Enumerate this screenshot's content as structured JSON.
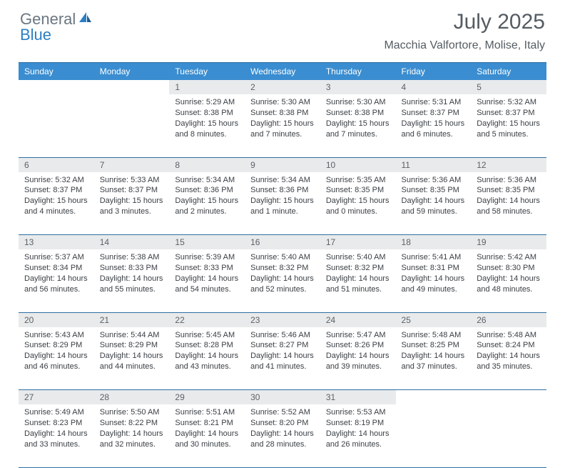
{
  "logo": {
    "general": "General",
    "blue": "Blue"
  },
  "title": "July 2025",
  "location": "Macchia Valfortore, Molise, Italy",
  "colors": {
    "header_bg": "#3a8dd0",
    "header_text": "#ffffff",
    "daynum_bg": "#e9eaeb",
    "daynum_text": "#5c6166",
    "body_text": "#3a3f44",
    "rule": "#2e6fa3",
    "logo_gray": "#6b7680",
    "logo_blue": "#2b7fc4",
    "title_gray": "#555c62"
  },
  "day_headers": [
    "Sunday",
    "Monday",
    "Tuesday",
    "Wednesday",
    "Thursday",
    "Friday",
    "Saturday"
  ],
  "weeks": [
    {
      "nums": [
        "",
        "",
        "1",
        "2",
        "3",
        "4",
        "5"
      ],
      "cells": [
        null,
        null,
        {
          "sunrise": "5:29 AM",
          "sunset": "8:38 PM",
          "daylight": "15 hours and 8 minutes."
        },
        {
          "sunrise": "5:30 AM",
          "sunset": "8:38 PM",
          "daylight": "15 hours and 7 minutes."
        },
        {
          "sunrise": "5:30 AM",
          "sunset": "8:38 PM",
          "daylight": "15 hours and 7 minutes."
        },
        {
          "sunrise": "5:31 AM",
          "sunset": "8:37 PM",
          "daylight": "15 hours and 6 minutes."
        },
        {
          "sunrise": "5:32 AM",
          "sunset": "8:37 PM",
          "daylight": "15 hours and 5 minutes."
        }
      ]
    },
    {
      "nums": [
        "6",
        "7",
        "8",
        "9",
        "10",
        "11",
        "12"
      ],
      "cells": [
        {
          "sunrise": "5:32 AM",
          "sunset": "8:37 PM",
          "daylight": "15 hours and 4 minutes."
        },
        {
          "sunrise": "5:33 AM",
          "sunset": "8:37 PM",
          "daylight": "15 hours and 3 minutes."
        },
        {
          "sunrise": "5:34 AM",
          "sunset": "8:36 PM",
          "daylight": "15 hours and 2 minutes."
        },
        {
          "sunrise": "5:34 AM",
          "sunset": "8:36 PM",
          "daylight": "15 hours and 1 minute."
        },
        {
          "sunrise": "5:35 AM",
          "sunset": "8:35 PM",
          "daylight": "15 hours and 0 minutes."
        },
        {
          "sunrise": "5:36 AM",
          "sunset": "8:35 PM",
          "daylight": "14 hours and 59 minutes."
        },
        {
          "sunrise": "5:36 AM",
          "sunset": "8:35 PM",
          "daylight": "14 hours and 58 minutes."
        }
      ]
    },
    {
      "nums": [
        "13",
        "14",
        "15",
        "16",
        "17",
        "18",
        "19"
      ],
      "cells": [
        {
          "sunrise": "5:37 AM",
          "sunset": "8:34 PM",
          "daylight": "14 hours and 56 minutes."
        },
        {
          "sunrise": "5:38 AM",
          "sunset": "8:33 PM",
          "daylight": "14 hours and 55 minutes."
        },
        {
          "sunrise": "5:39 AM",
          "sunset": "8:33 PM",
          "daylight": "14 hours and 54 minutes."
        },
        {
          "sunrise": "5:40 AM",
          "sunset": "8:32 PM",
          "daylight": "14 hours and 52 minutes."
        },
        {
          "sunrise": "5:40 AM",
          "sunset": "8:32 PM",
          "daylight": "14 hours and 51 minutes."
        },
        {
          "sunrise": "5:41 AM",
          "sunset": "8:31 PM",
          "daylight": "14 hours and 49 minutes."
        },
        {
          "sunrise": "5:42 AM",
          "sunset": "8:30 PM",
          "daylight": "14 hours and 48 minutes."
        }
      ]
    },
    {
      "nums": [
        "20",
        "21",
        "22",
        "23",
        "24",
        "25",
        "26"
      ],
      "cells": [
        {
          "sunrise": "5:43 AM",
          "sunset": "8:29 PM",
          "daylight": "14 hours and 46 minutes."
        },
        {
          "sunrise": "5:44 AM",
          "sunset": "8:29 PM",
          "daylight": "14 hours and 44 minutes."
        },
        {
          "sunrise": "5:45 AM",
          "sunset": "8:28 PM",
          "daylight": "14 hours and 43 minutes."
        },
        {
          "sunrise": "5:46 AM",
          "sunset": "8:27 PM",
          "daylight": "14 hours and 41 minutes."
        },
        {
          "sunrise": "5:47 AM",
          "sunset": "8:26 PM",
          "daylight": "14 hours and 39 minutes."
        },
        {
          "sunrise": "5:48 AM",
          "sunset": "8:25 PM",
          "daylight": "14 hours and 37 minutes."
        },
        {
          "sunrise": "5:48 AM",
          "sunset": "8:24 PM",
          "daylight": "14 hours and 35 minutes."
        }
      ]
    },
    {
      "nums": [
        "27",
        "28",
        "29",
        "30",
        "31",
        "",
        ""
      ],
      "cells": [
        {
          "sunrise": "5:49 AM",
          "sunset": "8:23 PM",
          "daylight": "14 hours and 33 minutes."
        },
        {
          "sunrise": "5:50 AM",
          "sunset": "8:22 PM",
          "daylight": "14 hours and 32 minutes."
        },
        {
          "sunrise": "5:51 AM",
          "sunset": "8:21 PM",
          "daylight": "14 hours and 30 minutes."
        },
        {
          "sunrise": "5:52 AM",
          "sunset": "8:20 PM",
          "daylight": "14 hours and 28 minutes."
        },
        {
          "sunrise": "5:53 AM",
          "sunset": "8:19 PM",
          "daylight": "14 hours and 26 minutes."
        },
        null,
        null
      ]
    }
  ],
  "labels": {
    "sunrise": "Sunrise: ",
    "sunset": "Sunset: ",
    "daylight": "Daylight: "
  }
}
